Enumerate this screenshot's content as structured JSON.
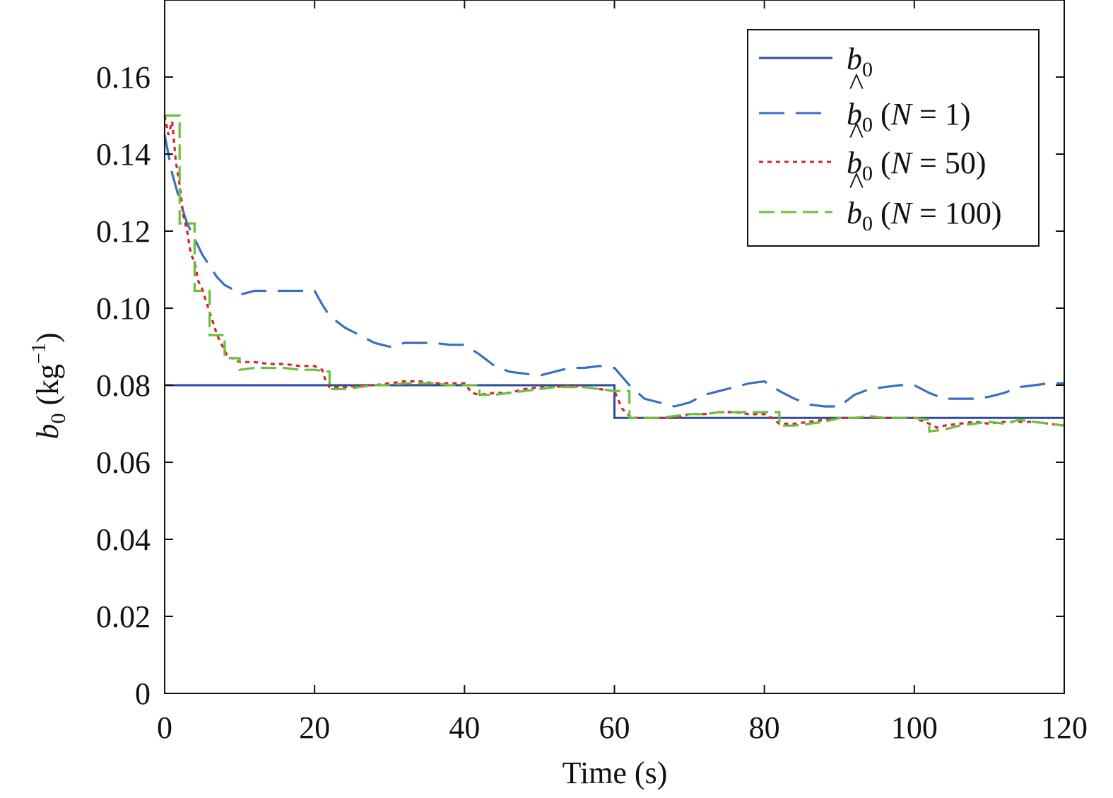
{
  "chart_data": {
    "type": "line",
    "title": "",
    "xlabel": "Time (s)",
    "ylabel": {
      "symbol": "b",
      "sub": "0",
      "unit_open": " (kg",
      "unit_sup": "−1",
      "unit_close": ")"
    },
    "xlim": [
      0,
      120
    ],
    "ylim": [
      0,
      0.18
    ],
    "xticks": [
      "0",
      "20",
      "40",
      "60",
      "80",
      "100",
      "120"
    ],
    "yticks": [
      "0",
      "0.02",
      "0.04",
      "0.06",
      "0.08",
      "0.10",
      "0.12",
      "0.14",
      "0.16"
    ],
    "grid": false,
    "legend_position": "top-right",
    "series": [
      {
        "name": "b0",
        "legend": {
          "hat": false,
          "symbol": "b",
          "sub": "0",
          "paren": ""
        },
        "color": "#2b4c9b",
        "style": "solid",
        "x": [
          0,
          60,
          60,
          120
        ],
        "y": [
          0.08,
          0.08,
          0.0715,
          0.0715
        ]
      },
      {
        "name": "b̂0 (N = 1)",
        "legend": {
          "hat": true,
          "symbol": "b",
          "sub": "0",
          "paren_open": " (",
          "var": "N",
          "paren_rest": " = 1)"
        },
        "color": "#3a6fc0",
        "style": "longdash",
        "x": [
          0,
          0.5,
          1,
          2,
          3,
          4,
          5,
          6,
          7,
          8,
          9,
          10,
          11,
          12,
          14,
          16,
          18,
          20,
          21,
          22,
          24,
          26,
          28,
          30,
          32,
          34,
          36,
          38,
          40,
          42,
          44,
          46,
          48,
          50,
          52,
          54,
          56,
          58,
          60,
          62,
          64,
          66,
          68,
          70,
          72,
          74,
          76,
          78,
          80,
          82,
          84,
          86,
          88,
          90,
          92,
          94,
          96,
          98,
          100,
          102,
          104,
          106,
          108,
          110,
          112,
          114,
          116,
          118,
          120
        ],
        "y": [
          0.145,
          0.14,
          0.135,
          0.128,
          0.122,
          0.118,
          0.114,
          0.111,
          0.108,
          0.106,
          0.105,
          0.1035,
          0.104,
          0.1045,
          0.1045,
          0.1045,
          0.1045,
          0.1045,
          0.101,
          0.098,
          0.095,
          0.093,
          0.091,
          0.09,
          0.091,
          0.091,
          0.091,
          0.0905,
          0.0905,
          0.088,
          0.085,
          0.0835,
          0.083,
          0.0825,
          0.0835,
          0.0845,
          0.0845,
          0.085,
          0.0845,
          0.08,
          0.0765,
          0.0755,
          0.0745,
          0.0755,
          0.0775,
          0.0785,
          0.0795,
          0.0805,
          0.081,
          0.0785,
          0.0765,
          0.075,
          0.0745,
          0.0745,
          0.0775,
          0.079,
          0.0795,
          0.08,
          0.08,
          0.078,
          0.0765,
          0.0765,
          0.0765,
          0.077,
          0.078,
          0.0795,
          0.08,
          0.0805,
          0.0805
        ]
      },
      {
        "name": "b̂0 (N = 50)",
        "legend": {
          "hat": true,
          "symbol": "b",
          "sub": "0",
          "paren_open": " (",
          "var": "N",
          "paren_rest": " = 50)"
        },
        "color": "#d9232b",
        "style": "dotted",
        "x": [
          0,
          0.5,
          1,
          1.5,
          2,
          2.5,
          3,
          3.5,
          4,
          4.5,
          5,
          5.5,
          6,
          6.5,
          7,
          7.5,
          8,
          8.5,
          9,
          10,
          11,
          12,
          14,
          16,
          18,
          20,
          21,
          21.5,
          22,
          24,
          26,
          28,
          30,
          32,
          34,
          36,
          38,
          40,
          41,
          42,
          44,
          46,
          48,
          50,
          52,
          54,
          56,
          58,
          60,
          61,
          62,
          63,
          64,
          66,
          68,
          70,
          72,
          74,
          76,
          78,
          80,
          81,
          82,
          84,
          86,
          88,
          90,
          92,
          94,
          96,
          98,
          100,
          102,
          103,
          104,
          106,
          108,
          110,
          112,
          114,
          116,
          118,
          120
        ],
        "y": [
          0.15,
          0.145,
          0.1485,
          0.138,
          0.132,
          0.124,
          0.12,
          0.114,
          0.112,
          0.107,
          0.105,
          0.102,
          0.099,
          0.096,
          0.093,
          0.091,
          0.089,
          0.087,
          0.087,
          0.086,
          0.086,
          0.086,
          0.0855,
          0.0855,
          0.085,
          0.085,
          0.084,
          0.081,
          0.0795,
          0.0795,
          0.08,
          0.08,
          0.0805,
          0.081,
          0.081,
          0.0805,
          0.0805,
          0.0805,
          0.078,
          0.0775,
          0.078,
          0.078,
          0.079,
          0.0795,
          0.0795,
          0.08,
          0.0795,
          0.079,
          0.0785,
          0.074,
          0.072,
          0.0715,
          0.0715,
          0.0715,
          0.0715,
          0.0725,
          0.0725,
          0.073,
          0.073,
          0.0725,
          0.0725,
          0.0715,
          0.07,
          0.07,
          0.0705,
          0.071,
          0.0715,
          0.0715,
          0.0715,
          0.0715,
          0.0715,
          0.0715,
          0.07,
          0.069,
          0.0695,
          0.07,
          0.0705,
          0.07,
          0.0705,
          0.0705,
          0.0705,
          0.07,
          0.0695
        ]
      },
      {
        "name": "b̂0 (N = 100)",
        "legend": {
          "hat": true,
          "symbol": "b",
          "sub": "0",
          "paren_open": " (",
          "var": "N",
          "paren_rest": " = 100)"
        },
        "color": "#6cbf3a",
        "style": "dashed",
        "x": [
          0,
          2,
          2,
          4,
          4,
          6,
          6,
          8,
          8,
          10,
          10,
          12,
          14,
          16,
          18,
          20,
          22,
          22,
          24,
          26,
          28,
          30,
          32,
          34,
          36,
          38,
          40,
          42,
          42,
          44,
          46,
          48,
          50,
          52,
          54,
          56,
          58,
          60,
          62,
          62,
          64,
          66,
          68,
          70,
          72,
          74,
          76,
          78,
          80,
          82,
          82,
          84,
          86,
          88,
          90,
          92,
          94,
          96,
          98,
          100,
          102,
          102,
          104,
          106,
          108,
          110,
          112,
          114,
          116,
          118,
          120
        ],
        "y": [
          0.15,
          0.15,
          0.122,
          0.122,
          0.1045,
          0.1045,
          0.093,
          0.093,
          0.087,
          0.087,
          0.084,
          0.0845,
          0.0845,
          0.0845,
          0.084,
          0.084,
          0.0835,
          0.079,
          0.079,
          0.0795,
          0.08,
          0.08,
          0.0805,
          0.0805,
          0.0805,
          0.08,
          0.08,
          0.08,
          0.0775,
          0.0775,
          0.078,
          0.0785,
          0.079,
          0.0795,
          0.0795,
          0.0795,
          0.079,
          0.0785,
          0.0785,
          0.0715,
          0.0715,
          0.0715,
          0.072,
          0.0725,
          0.0725,
          0.073,
          0.073,
          0.073,
          0.073,
          0.073,
          0.0695,
          0.0695,
          0.07,
          0.0705,
          0.0715,
          0.0715,
          0.072,
          0.0715,
          0.0715,
          0.0715,
          0.071,
          0.068,
          0.0685,
          0.0695,
          0.07,
          0.0705,
          0.07,
          0.071,
          0.0705,
          0.07,
          0.0695
        ]
      }
    ]
  }
}
